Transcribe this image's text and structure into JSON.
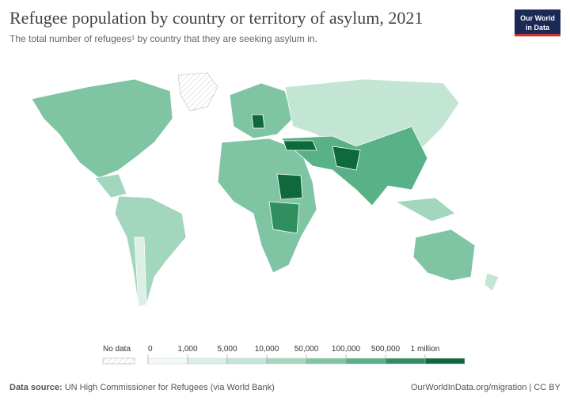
{
  "header": {
    "title": "Refugee population by country or territory of asylum, 2021",
    "subtitle": "The total number of refugees¹ by country that they are seeking asylum in.",
    "logo": [
      "Our World",
      "in Data"
    ]
  },
  "legend": {
    "no_data": "No data",
    "labels": [
      "0",
      "1,000",
      "5,000",
      "10,000",
      "50,000",
      "100,000",
      "500,000",
      "1 million"
    ],
    "colors": [
      "#f3f9f5",
      "#dcefe5",
      "#c2e5d4",
      "#a2d6bd",
      "#7fc5a4",
      "#58b187",
      "#2f8f5f",
      "#0e6a3a"
    ]
  },
  "footer": {
    "source_label": "Data source:",
    "source": "UN High Commissioner for Refugees (via World Bank)",
    "url": "OurWorldInData.org/migration | CC BY"
  }
}
